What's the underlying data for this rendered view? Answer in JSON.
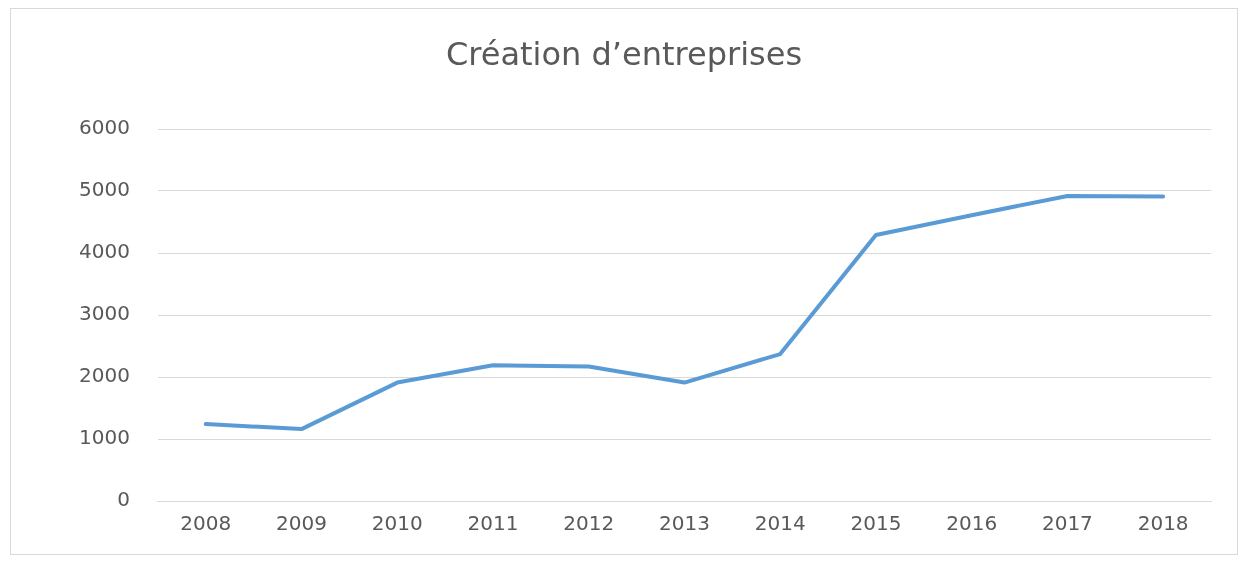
{
  "chart_data": {
    "type": "line",
    "title": "Création d’entreprises",
    "categories": [
      "2008",
      "2009",
      "2010",
      "2011",
      "2012",
      "2013",
      "2014",
      "2015",
      "2016",
      "2017",
      "2018"
    ],
    "series": [
      {
        "color": "#5b9bd5",
        "values": [
          1240,
          1160,
          1910,
          2190,
          2170,
          1910,
          2370,
          4290,
          4610,
          4920,
          4910
        ]
      }
    ],
    "ylim": [
      0,
      6000
    ],
    "yticks": [
      0,
      1000,
      2000,
      3000,
      4000,
      5000,
      6000
    ],
    "grid": "y",
    "legend": false,
    "marker": "none",
    "line_style": "solid"
  }
}
